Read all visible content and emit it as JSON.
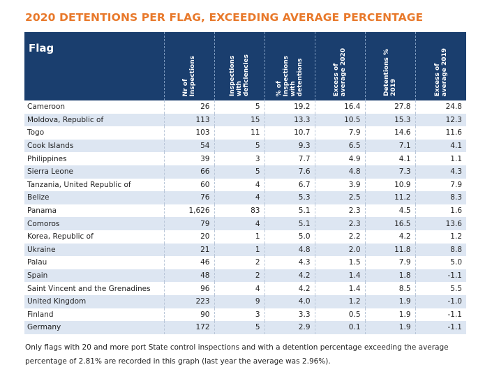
{
  "title": "2020 DETENTIONS PER FLAG, EXCEEDING AVERAGE PERCENTAGE",
  "table": {
    "headers": [
      "Flag",
      "Nr of\nInspections",
      "Inspections\nwith\ndeficiencies",
      "% of\nInspections\nwith\ndetentions",
      "Excess of\naverage 2020",
      "Detentions %\n2019",
      "Excess of\naverage 2019"
    ],
    "rows": [
      [
        "Cameroon",
        "26",
        "5",
        "19.2",
        "16.4",
        "27.8",
        "24.8"
      ],
      [
        "Moldova, Republic of",
        "113",
        "15",
        "13.3",
        "10.5",
        "15.3",
        "12.3"
      ],
      [
        "Togo",
        "103",
        "11",
        "10.7",
        "7.9",
        "14.6",
        "11.6"
      ],
      [
        "Cook Islands",
        "54",
        "5",
        "9.3",
        "6.5",
        "7.1",
        "4.1"
      ],
      [
        "Philippines",
        "39",
        "3",
        "7.7",
        "4.9",
        "4.1",
        "1.1"
      ],
      [
        "Sierra Leone",
        "66",
        "5",
        "7.6",
        "4.8",
        "7.3",
        "4.3"
      ],
      [
        "Tanzania, United Republic of",
        "60",
        "4",
        "6.7",
        "3.9",
        "10.9",
        "7.9"
      ],
      [
        "Belize",
        "76",
        "4",
        "5.3",
        "2.5",
        "11.2",
        "8.3"
      ],
      [
        "Panama",
        "1,626",
        "83",
        "5.1",
        "2.3",
        "4.5",
        "1.6"
      ],
      [
        "Comoros",
        "79",
        "4",
        "5.1",
        "2.3",
        "16.5",
        "13.6"
      ],
      [
        "Korea, Republic of",
        "20",
        "1",
        "5.0",
        "2.2",
        "4.2",
        "1.2"
      ],
      [
        "Ukraine",
        "21",
        "1",
        "4.8",
        "2.0",
        "11.8",
        "8.8"
      ],
      [
        "Palau",
        "46",
        "2",
        "4.3",
        "1.5",
        "7.9",
        "5.0"
      ],
      [
        "Spain",
        "48",
        "2",
        "4.2",
        "1.4",
        "1.8",
        "-1.1"
      ],
      [
        "Saint Vincent and the Grenadines",
        "96",
        "4",
        "4.2",
        "1.4",
        "8.5",
        "5.5"
      ],
      [
        "United Kingdom",
        "223",
        "9",
        "4.0",
        "1.2",
        "1.9",
        "-1.0"
      ],
      [
        "Finland",
        "90",
        "3",
        "3.3",
        "0.5",
        "1.9",
        "-1.1"
      ],
      [
        "Germany",
        "172",
        "5",
        "2.9",
        "0.1",
        "1.9",
        "-1.1"
      ]
    ]
  },
  "note": "Only flags with 20 and more port State control inspections and with a detention percentage exceeding the average percentage of 2.81% are recorded in this graph (last year the average was 2.96%).",
  "colors": {
    "title": "#e8792b",
    "header_bg": "#1a3e6e",
    "row_alt": "#dde6f2"
  }
}
